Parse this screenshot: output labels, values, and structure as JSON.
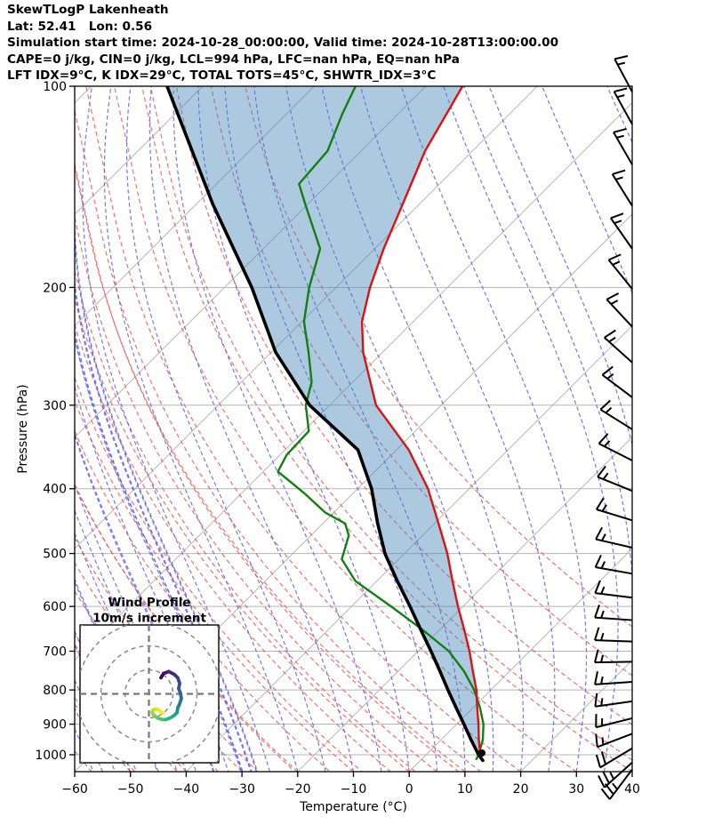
{
  "header": {
    "lines": [
      "SkewTLogP Lakenheath",
      "Lat: 52.41   Lon: 0.56",
      "Simulation start time: 2024-10-28_00:00:00, Valid time: 2024-10-28T13:00:00.00",
      "CAPE=0 j/kg, CIN=0 j/kg, LCL=994 hPa, LFC=nan hPa, EQ=nan hPa",
      "LFT IDX=9°C, K IDX=29°C, TOTAL TOTS=45°C, SHWTR_IDX=3°C"
    ]
  },
  "chart_data": {
    "type": "skewt-logp",
    "title": "SkewTLogP Lakenheath",
    "xlabel": "Temperature (°C)",
    "ylabel": "Pressure (hPa)",
    "xlim": [
      -60,
      40
    ],
    "pressure_lim": [
      100,
      1060
    ],
    "x_ticks": [
      -60,
      -50,
      -40,
      -30,
      -20,
      -10,
      0,
      10,
      20,
      30,
      40
    ],
    "pressure_ticks": [
      100,
      200,
      300,
      400,
      500,
      600,
      700,
      800,
      900,
      1000
    ],
    "skew_deg": 45,
    "isotherm_step_c": 20,
    "dry_adiabat_step_c": 10,
    "moist_adiabat_step_c": 5,
    "temperature_profile": [
      [
        1015,
        10.8
      ],
      [
        1000,
        9.7
      ],
      [
        950,
        6.8
      ],
      [
        900,
        3.9
      ],
      [
        850,
        0.7
      ],
      [
        800,
        -2.6
      ],
      [
        750,
        -6.6
      ],
      [
        700,
        -10.8
      ],
      [
        650,
        -15.6
      ],
      [
        600,
        -20.9
      ],
      [
        550,
        -26.4
      ],
      [
        500,
        -32.3
      ],
      [
        450,
        -39.4
      ],
      [
        400,
        -47.4
      ],
      [
        350,
        -57.8
      ],
      [
        300,
        -71.7
      ],
      [
        250,
        -83.5
      ],
      [
        225,
        -89.2
      ],
      [
        200,
        -93.9
      ],
      [
        175,
        -98.4
      ],
      [
        150,
        -103.0
      ],
      [
        125,
        -108.5
      ],
      [
        100,
        -113.4
      ]
    ],
    "dewpoint_profile": [
      [
        1015,
        9.8
      ],
      [
        1000,
        9.4
      ],
      [
        950,
        7.5
      ],
      [
        900,
        4.8
      ],
      [
        850,
        1.2
      ],
      [
        800,
        -3.0
      ],
      [
        750,
        -8.2
      ],
      [
        700,
        -14.5
      ],
      [
        650,
        -23.1
      ],
      [
        600,
        -32.9
      ],
      [
        550,
        -43.8
      ],
      [
        510,
        -50.2
      ],
      [
        470,
        -53.2
      ],
      [
        451,
        -56.0
      ],
      [
        434,
        -61.6
      ],
      [
        408,
        -68.3
      ],
      [
        394,
        -72.3
      ],
      [
        377,
        -77.4
      ],
      [
        356,
        -78.8
      ],
      [
        328,
        -79.1
      ],
      [
        300,
        -84.3
      ],
      [
        277,
        -87.4
      ],
      [
        250,
        -93.3
      ],
      [
        225,
        -99.6
      ],
      [
        200,
        -104.8
      ],
      [
        175,
        -109.8
      ],
      [
        150,
        -120.5
      ],
      [
        140,
        -125.2
      ],
      [
        125,
        -126.0
      ],
      [
        110,
        -130.0
      ],
      [
        100,
        -132.6
      ]
    ],
    "parcel_profile": [
      [
        1020,
        11.2
      ],
      [
        1000,
        9.4
      ],
      [
        950,
        5.4
      ],
      [
        900,
        1.3
      ],
      [
        850,
        -3.1
      ],
      [
        800,
        -7.7
      ],
      [
        750,
        -12.5
      ],
      [
        700,
        -17.7
      ],
      [
        650,
        -23.4
      ],
      [
        600,
        -29.5
      ],
      [
        550,
        -36.3
      ],
      [
        500,
        -43.5
      ],
      [
        450,
        -50.3
      ],
      [
        400,
        -57.5
      ],
      [
        350,
        -66.9
      ],
      [
        300,
        -83.6
      ],
      [
        250,
        -99.2
      ],
      [
        200,
        -115.1
      ],
      [
        150,
        -137.1
      ],
      [
        100,
        -166.4
      ]
    ],
    "lcl_marker": {
      "pressure_hpa": 994,
      "temp_c": 9.7
    },
    "wind_barbs": {
      "anchor": "right-edge",
      "barb_full_ms": 10,
      "levels": [
        {
          "p": 102,
          "dir": 118,
          "speed": 15
        },
        {
          "p": 114,
          "dir": 119,
          "speed": 15
        },
        {
          "p": 131,
          "dir": 120,
          "speed": 15
        },
        {
          "p": 151,
          "dir": 122,
          "speed": 15
        },
        {
          "p": 175,
          "dir": 125,
          "speed": 15
        },
        {
          "p": 201,
          "dir": 129,
          "speed": 15
        },
        {
          "p": 229,
          "dir": 133,
          "speed": 15
        },
        {
          "p": 259,
          "dir": 138,
          "speed": 15
        },
        {
          "p": 292,
          "dir": 143,
          "speed": 15
        },
        {
          "p": 326,
          "dir": 148,
          "speed": 15
        },
        {
          "p": 363,
          "dir": 153,
          "speed": 15
        },
        {
          "p": 403,
          "dir": 158,
          "speed": 15
        },
        {
          "p": 446,
          "dir": 163,
          "speed": 15
        },
        {
          "p": 490,
          "dir": 167,
          "speed": 15
        },
        {
          "p": 536,
          "dir": 170,
          "speed": 15
        },
        {
          "p": 582,
          "dir": 173,
          "speed": 15
        },
        {
          "p": 629,
          "dir": 176,
          "speed": 15
        },
        {
          "p": 677,
          "dir": 178,
          "speed": 15
        },
        {
          "p": 726,
          "dir": 181,
          "speed": 15
        },
        {
          "p": 778,
          "dir": 184,
          "speed": 15
        },
        {
          "p": 832,
          "dir": 188,
          "speed": 15
        },
        {
          "p": 882,
          "dir": 194,
          "speed": 15
        },
        {
          "p": 930,
          "dir": 201,
          "speed": 15
        },
        {
          "p": 978,
          "dir": 211,
          "speed": 20
        },
        {
          "p": 1027,
          "dir": 222,
          "speed": 25
        },
        {
          "p": 1052,
          "dir": 233,
          "speed": 25
        }
      ]
    },
    "hodograph": {
      "title_lines": [
        "Wind Profile",
        "10m/s increment"
      ],
      "ring_increment_ms": 10,
      "rings_ms": [
        10,
        20,
        30,
        40
      ],
      "trace_uv_ms": [
        [
          5.0,
          6.7
        ],
        [
          6.1,
          8.5
        ],
        [
          8.3,
          9.3
        ],
        [
          10.6,
          8.1
        ],
        [
          12.0,
          6.7
        ],
        [
          12.8,
          4.4
        ],
        [
          12.4,
          2.2
        ],
        [
          13.1,
          0.4
        ],
        [
          13.5,
          -1.9
        ],
        [
          12.8,
          -4.1
        ],
        [
          12.0,
          -5.9
        ],
        [
          11.7,
          -7.8
        ],
        [
          10.6,
          -8.9
        ],
        [
          9.1,
          -9.9
        ],
        [
          7.2,
          -10.7
        ],
        [
          5.4,
          -10.7
        ],
        [
          3.5,
          -10.0
        ],
        [
          2.0,
          -8.9
        ],
        [
          1.3,
          -7.8
        ],
        [
          1.7,
          -6.7
        ],
        [
          3.1,
          -6.3
        ],
        [
          4.6,
          -7.0
        ],
        [
          5.7,
          -8.1
        ]
      ]
    },
    "colors": {
      "temperature": "#dd1111",
      "dewpoint": "#147d14",
      "parcel": "#000000",
      "shade": "#4a88b8",
      "dry_adiabat": "#e85c5c",
      "moist_adiabat": "#6060e8",
      "isotherm": "#b5b5b5",
      "grid": "#b5b5b5",
      "barb": "#000000",
      "inset_ring": "#8a8a8a",
      "viridis": [
        "#440154",
        "#472d7b",
        "#3b528b",
        "#2c728e",
        "#21918c",
        "#28ae80",
        "#5ec962",
        "#addc30",
        "#fde725"
      ]
    }
  }
}
